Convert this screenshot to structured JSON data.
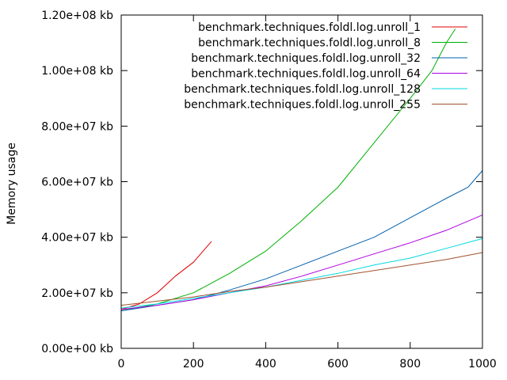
{
  "chart_data": {
    "type": "line",
    "title": "",
    "xlabel": "",
    "ylabel": "Memory usage",
    "xlim": [
      0,
      1000
    ],
    "ylim": [
      0,
      120000000
    ],
    "x_ticks": [
      0,
      200,
      400,
      600,
      800,
      1000
    ],
    "x_tick_labels": [
      "0",
      "200",
      "400",
      "600",
      "800",
      "1000"
    ],
    "y_ticks": [
      0,
      20000000,
      40000000,
      60000000,
      80000000,
      100000000,
      120000000
    ],
    "y_tick_labels": [
      "0.00e+00 kb",
      "2.00e+07 kb",
      "4.00e+07 kb",
      "6.00e+07 kb",
      "8.00e+07 kb",
      "1.00e+08 kb",
      "1.20e+08 kb"
    ],
    "grid": false,
    "legend_position": "top-right",
    "series": [
      {
        "name": "benchmark.techniques.foldl.log.unroll_1",
        "color": "#e00000",
        "x": [
          0,
          50,
          100,
          150,
          200,
          250
        ],
        "y": [
          14000000,
          16000000,
          20000000,
          26000000,
          31000000,
          38500000
        ]
      },
      {
        "name": "benchmark.techniques.foldl.log.unroll_8",
        "color": "#00b000",
        "x": [
          0,
          100,
          200,
          300,
          400,
          500,
          600,
          700,
          800,
          860,
          900,
          925
        ],
        "y": [
          13500000,
          16000000,
          20000000,
          27000000,
          35000000,
          46000000,
          58000000,
          74000000,
          90000000,
          100000000,
          110000000,
          115000000
        ]
      },
      {
        "name": "benchmark.techniques.foldl.log.unroll_32",
        "color": "#0060ad",
        "x": [
          0,
          100,
          200,
          300,
          400,
          500,
          600,
          700,
          800,
          900,
          960,
          1000
        ],
        "y": [
          13500000,
          15500000,
          17500000,
          21000000,
          25000000,
          30000000,
          35000000,
          40000000,
          47000000,
          54000000,
          58000000,
          64000000
        ]
      },
      {
        "name": "benchmark.techniques.foldl.log.unroll_64",
        "color": "#b000e0",
        "x": [
          0,
          100,
          200,
          300,
          400,
          500,
          600,
          700,
          800,
          900,
          1000
        ],
        "y": [
          14000000,
          15500000,
          17500000,
          20000000,
          22500000,
          26000000,
          30000000,
          34000000,
          38000000,
          42500000,
          48000000
        ]
      },
      {
        "name": "benchmark.techniques.foldl.log.unroll_128",
        "color": "#00d8e0",
        "x": [
          0,
          100,
          200,
          300,
          400,
          500,
          600,
          700,
          800,
          900,
          1000
        ],
        "y": [
          14500000,
          16000000,
          18000000,
          20000000,
          22000000,
          24500000,
          27000000,
          30000000,
          32500000,
          36000000,
          39500000
        ]
      },
      {
        "name": "benchmark.techniques.foldl.log.unroll_255",
        "color": "#a0522d",
        "x": [
          0,
          100,
          200,
          300,
          400,
          500,
          600,
          700,
          800,
          900,
          1000
        ],
        "y": [
          15500000,
          17000000,
          18500000,
          20500000,
          22000000,
          24000000,
          26000000,
          28000000,
          30000000,
          32000000,
          34500000
        ]
      }
    ]
  }
}
